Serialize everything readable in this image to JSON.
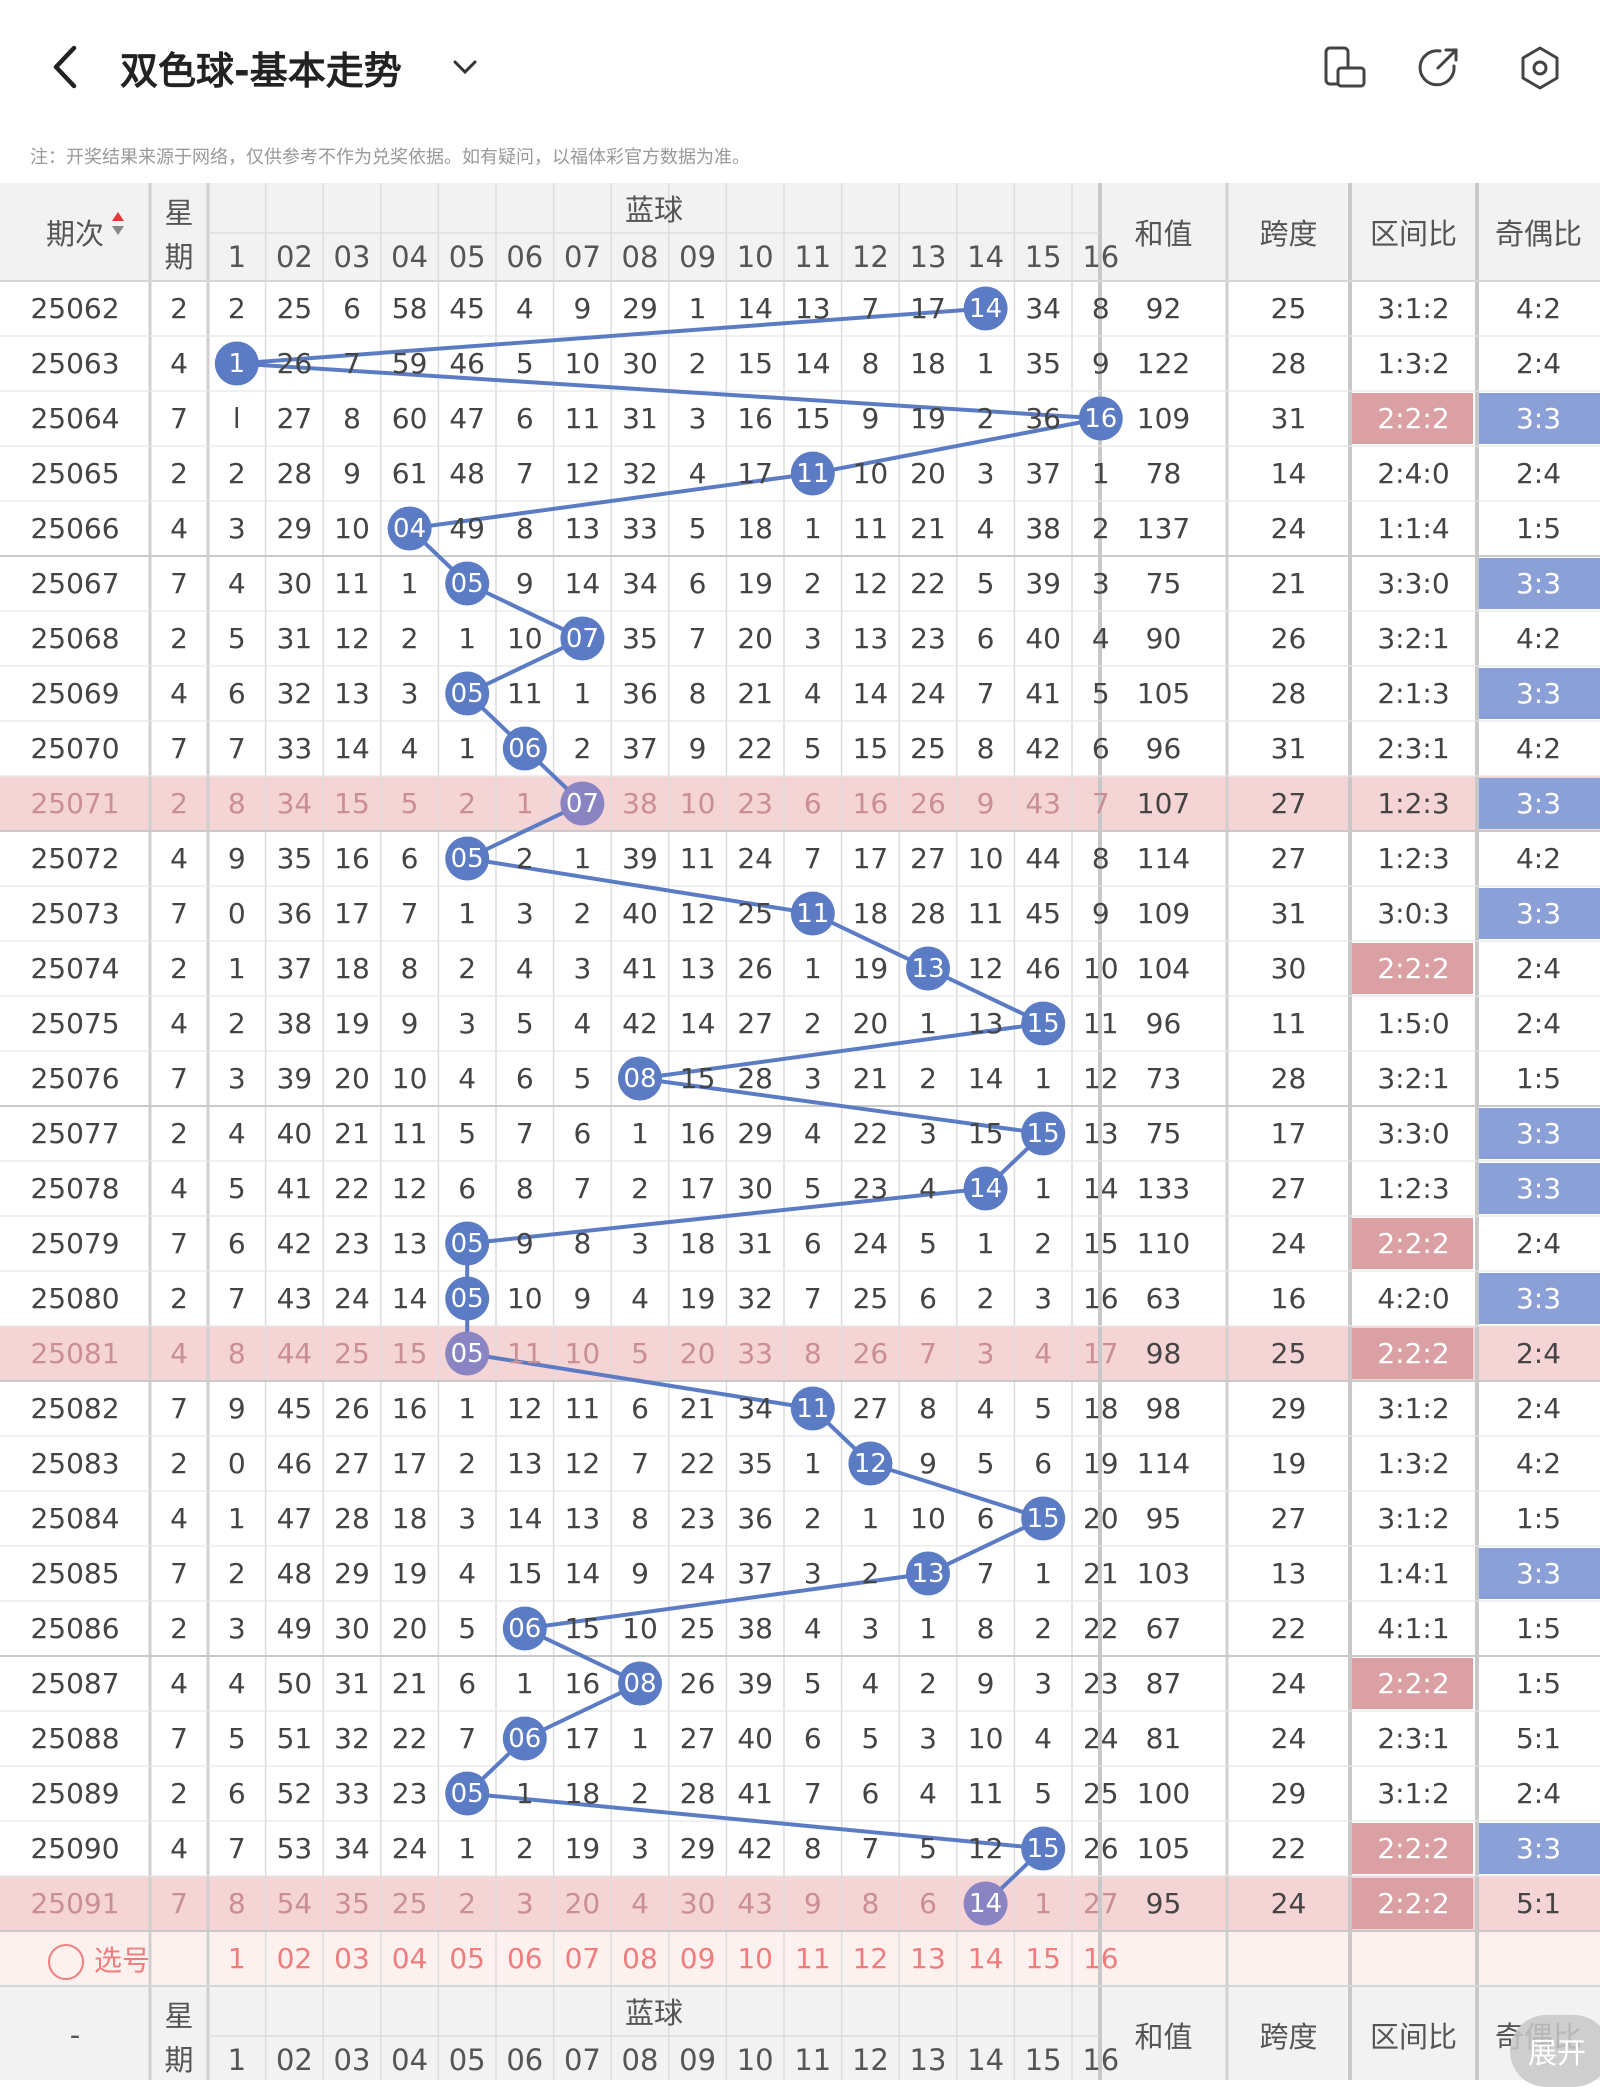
{
  "header": {
    "title": "双色球-基本走势",
    "icons": [
      "back-arrow-icon",
      "chevron-down-icon",
      "phone-landscape-icon",
      "share-icon",
      "settings-icon"
    ]
  },
  "note": "注：开奖结果来源于网络，仅供参考不作为兑奖依据。如有疑问，以福体彩官方数据为准。",
  "columns": {
    "period": "期次",
    "weekday": "星期",
    "blue_ball": "蓝球",
    "sum": "和值",
    "span": "跨度",
    "zone_ratio": "区间比",
    "odd_even_ratio": "奇偶比",
    "blue_numbers": [
      "1",
      "02",
      "03",
      "04",
      "05",
      "06",
      "07",
      "08",
      "09",
      "10",
      "11",
      "12",
      "13",
      "14",
      "15",
      "16"
    ]
  },
  "rows": [
    {
      "period": "25062",
      "wd": "2",
      "c1": "2",
      "miss": [
        "25",
        "6",
        "58",
        "45",
        "4",
        "9",
        "29",
        "1",
        "14",
        "13",
        "7",
        "17",
        "14",
        "34",
        "8"
      ],
      "ball": 14,
      "sum": "92",
      "span": "25",
      "zone": "3:1:2",
      "oe": "4:2"
    },
    {
      "period": "25063",
      "wd": "4",
      "c1": "1",
      "miss": [
        "26",
        "7",
        "59",
        "46",
        "5",
        "10",
        "30",
        "2",
        "15",
        "14",
        "8",
        "18",
        "1",
        "35",
        "9"
      ],
      "ball": 1,
      "sum": "122",
      "span": "28",
      "zone": "1:3:2",
      "oe": "2:4"
    },
    {
      "period": "25064",
      "wd": "7",
      "c1": "l",
      "miss": [
        "27",
        "8",
        "60",
        "47",
        "6",
        "11",
        "31",
        "3",
        "16",
        "15",
        "9",
        "19",
        "2",
        "36",
        "16"
      ],
      "ball": 16,
      "sum": "109",
      "span": "31",
      "zone": "2:2:2",
      "oe": "3:3"
    },
    {
      "period": "25065",
      "wd": "2",
      "c1": "2",
      "miss": [
        "28",
        "9",
        "61",
        "48",
        "7",
        "12",
        "32",
        "4",
        "17",
        "11",
        "10",
        "20",
        "3",
        "37",
        "1"
      ],
      "ball": 11,
      "sum": "78",
      "span": "14",
      "zone": "2:4:0",
      "oe": "2:4"
    },
    {
      "period": "25066",
      "wd": "4",
      "c1": "3",
      "miss": [
        "29",
        "10",
        "04",
        "49",
        "8",
        "13",
        "33",
        "5",
        "18",
        "1",
        "11",
        "21",
        "4",
        "38",
        "2"
      ],
      "ball": 4,
      "sum": "137",
      "span": "24",
      "zone": "1:1:4",
      "oe": "1:5"
    },
    {
      "period": "25067",
      "wd": "7",
      "c1": "4",
      "miss": [
        "30",
        "11",
        "1",
        "05",
        "9",
        "14",
        "34",
        "6",
        "19",
        "2",
        "12",
        "22",
        "5",
        "39",
        "3"
      ],
      "ball": 5,
      "sum": "75",
      "span": "21",
      "zone": "3:3:0",
      "oe": "3:3"
    },
    {
      "period": "25068",
      "wd": "2",
      "c1": "5",
      "miss": [
        "31",
        "12",
        "2",
        "1",
        "10",
        "07",
        "35",
        "7",
        "20",
        "3",
        "13",
        "23",
        "6",
        "40",
        "4"
      ],
      "ball": 7,
      "sum": "90",
      "span": "26",
      "zone": "3:2:1",
      "oe": "4:2"
    },
    {
      "period": "25069",
      "wd": "4",
      "c1": "6",
      "miss": [
        "32",
        "13",
        "3",
        "05",
        "11",
        "1",
        "36",
        "8",
        "21",
        "4",
        "14",
        "24",
        "7",
        "41",
        "5"
      ],
      "ball": 5,
      "sum": "105",
      "span": "28",
      "zone": "2:1:3",
      "oe": "3:3"
    },
    {
      "period": "25070",
      "wd": "7",
      "c1": "7",
      "miss": [
        "33",
        "14",
        "4",
        "1",
        "06",
        "2",
        "37",
        "9",
        "22",
        "5",
        "15",
        "25",
        "8",
        "42",
        "6"
      ],
      "ball": 6,
      "sum": "96",
      "span": "31",
      "zone": "2:3:1",
      "oe": "4:2"
    },
    {
      "period": "25071",
      "wd": "2",
      "c1": "8",
      "miss": [
        "34",
        "15",
        "5",
        "2",
        "1",
        "07",
        "38",
        "10",
        "23",
        "6",
        "16",
        "26",
        "9",
        "43",
        "7"
      ],
      "ball": 7,
      "sum": "107",
      "span": "27",
      "zone": "1:2:3",
      "oe": "3:3",
      "hl": true
    },
    {
      "period": "25072",
      "wd": "4",
      "c1": "9",
      "miss": [
        "35",
        "16",
        "6",
        "05",
        "2",
        "1",
        "39",
        "11",
        "24",
        "7",
        "17",
        "27",
        "10",
        "44",
        "8"
      ],
      "ball": 5,
      "sum": "114",
      "span": "27",
      "zone": "1:2:3",
      "oe": "4:2"
    },
    {
      "period": "25073",
      "wd": "7",
      "c1": "0",
      "miss": [
        "36",
        "17",
        "7",
        "1",
        "3",
        "2",
        "40",
        "12",
        "25",
        "11",
        "18",
        "28",
        "11",
        "45",
        "9"
      ],
      "ball": 11,
      "sum": "109",
      "span": "31",
      "zone": "3:0:3",
      "oe": "3:3"
    },
    {
      "period": "25074",
      "wd": "2",
      "c1": "1",
      "miss": [
        "37",
        "18",
        "8",
        "2",
        "4",
        "3",
        "41",
        "13",
        "26",
        "1",
        "19",
        "13",
        "12",
        "46",
        "10"
      ],
      "ball": 13,
      "sum": "104",
      "span": "30",
      "zone": "2:2:2",
      "oe": "2:4"
    },
    {
      "period": "25075",
      "wd": "4",
      "c1": "2",
      "miss": [
        "38",
        "19",
        "9",
        "3",
        "5",
        "4",
        "42",
        "14",
        "27",
        "2",
        "20",
        "1",
        "13",
        "15",
        "11"
      ],
      "ball": 15,
      "sum": "96",
      "span": "11",
      "zone": "1:5:0",
      "oe": "2:4"
    },
    {
      "period": "25076",
      "wd": "7",
      "c1": "3",
      "miss": [
        "39",
        "20",
        "10",
        "4",
        "6",
        "5",
        "08",
        "15",
        "28",
        "3",
        "21",
        "2",
        "14",
        "1",
        "12"
      ],
      "ball": 8,
      "sum": "73",
      "span": "28",
      "zone": "3:2:1",
      "oe": "1:5"
    },
    {
      "period": "25077",
      "wd": "2",
      "c1": "4",
      "miss": [
        "40",
        "21",
        "11",
        "5",
        "7",
        "6",
        "1",
        "16",
        "29",
        "4",
        "22",
        "3",
        "15",
        "15",
        "13"
      ],
      "ball": 15,
      "sum": "75",
      "span": "17",
      "zone": "3:3:0",
      "oe": "3:3"
    },
    {
      "period": "25078",
      "wd": "4",
      "c1": "5",
      "miss": [
        "41",
        "22",
        "12",
        "6",
        "8",
        "7",
        "2",
        "17",
        "30",
        "5",
        "23",
        "4",
        "14",
        "1",
        "14"
      ],
      "ball": 14,
      "sum": "133",
      "span": "27",
      "zone": "1:2:3",
      "oe": "3:3"
    },
    {
      "period": "25079",
      "wd": "7",
      "c1": "6",
      "miss": [
        "42",
        "23",
        "13",
        "05",
        "9",
        "8",
        "3",
        "18",
        "31",
        "6",
        "24",
        "5",
        "1",
        "2",
        "15"
      ],
      "ball": 5,
      "sum": "110",
      "span": "24",
      "zone": "2:2:2",
      "oe": "2:4"
    },
    {
      "period": "25080",
      "wd": "2",
      "c1": "7",
      "miss": [
        "43",
        "24",
        "14",
        "05",
        "10",
        "9",
        "4",
        "19",
        "32",
        "7",
        "25",
        "6",
        "2",
        "3",
        "16"
      ],
      "ball": 5,
      "sum": "63",
      "span": "16",
      "zone": "4:2:0",
      "oe": "3:3"
    },
    {
      "period": "25081",
      "wd": "4",
      "c1": "8",
      "miss": [
        "44",
        "25",
        "15",
        "05",
        "11",
        "10",
        "5",
        "20",
        "33",
        "8",
        "26",
        "7",
        "3",
        "4",
        "17"
      ],
      "ball": 5,
      "sum": "98",
      "span": "25",
      "zone": "2:2:2",
      "oe": "2:4",
      "hl": true
    },
    {
      "period": "25082",
      "wd": "7",
      "c1": "9",
      "miss": [
        "45",
        "26",
        "16",
        "1",
        "12",
        "11",
        "6",
        "21",
        "34",
        "11",
        "27",
        "8",
        "4",
        "5",
        "18"
      ],
      "ball": 11,
      "sum": "98",
      "span": "29",
      "zone": "3:1:2",
      "oe": "2:4"
    },
    {
      "period": "25083",
      "wd": "2",
      "c1": "0",
      "miss": [
        "46",
        "27",
        "17",
        "2",
        "13",
        "12",
        "7",
        "22",
        "35",
        "1",
        "12",
        "9",
        "5",
        "6",
        "19"
      ],
      "ball": 12,
      "sum": "114",
      "span": "19",
      "zone": "1:3:2",
      "oe": "4:2"
    },
    {
      "period": "25084",
      "wd": "4",
      "c1": "1",
      "miss": [
        "47",
        "28",
        "18",
        "3",
        "14",
        "13",
        "8",
        "23",
        "36",
        "2",
        "1",
        "10",
        "6",
        "15",
        "20"
      ],
      "ball": 15,
      "sum": "95",
      "span": "27",
      "zone": "3:1:2",
      "oe": "1:5"
    },
    {
      "period": "25085",
      "wd": "7",
      "c1": "2",
      "miss": [
        "48",
        "29",
        "19",
        "4",
        "15",
        "14",
        "9",
        "24",
        "37",
        "3",
        "2",
        "13",
        "7",
        "1",
        "21"
      ],
      "ball": 13,
      "sum": "103",
      "span": "13",
      "zone": "1:4:1",
      "oe": "3:3"
    },
    {
      "period": "25086",
      "wd": "2",
      "c1": "3",
      "miss": [
        "49",
        "30",
        "20",
        "5",
        "06",
        "15",
        "10",
        "25",
        "38",
        "4",
        "3",
        "1",
        "8",
        "2",
        "22"
      ],
      "ball": 6,
      "sum": "67",
      "span": "22",
      "zone": "4:1:1",
      "oe": "1:5"
    },
    {
      "period": "25087",
      "wd": "4",
      "c1": "4",
      "miss": [
        "50",
        "31",
        "21",
        "6",
        "1",
        "16",
        "08",
        "26",
        "39",
        "5",
        "4",
        "2",
        "9",
        "3",
        "23"
      ],
      "ball": 8,
      "sum": "87",
      "span": "24",
      "zone": "2:2:2",
      "oe": "1:5"
    },
    {
      "period": "25088",
      "wd": "7",
      "c1": "5",
      "miss": [
        "51",
        "32",
        "22",
        "7",
        "06",
        "17",
        "1",
        "27",
        "40",
        "6",
        "5",
        "3",
        "10",
        "4",
        "24"
      ],
      "ball": 6,
      "sum": "81",
      "span": "24",
      "zone": "2:3:1",
      "oe": "5:1"
    },
    {
      "period": "25089",
      "wd": "2",
      "c1": "6",
      "miss": [
        "52",
        "33",
        "23",
        "05",
        "1",
        "18",
        "2",
        "28",
        "41",
        "7",
        "6",
        "4",
        "11",
        "5",
        "25"
      ],
      "ball": 5,
      "sum": "100",
      "span": "29",
      "zone": "3:1:2",
      "oe": "2:4"
    },
    {
      "period": "25090",
      "wd": "4",
      "c1": "7",
      "miss": [
        "53",
        "34",
        "24",
        "1",
        "2",
        "19",
        "3",
        "29",
        "42",
        "8",
        "7",
        "5",
        "12",
        "15",
        "26"
      ],
      "ball": 15,
      "sum": "105",
      "span": "22",
      "zone": "2:2:2",
      "oe": "3:3"
    },
    {
      "period": "25091",
      "wd": "7",
      "c1": "8",
      "miss": [
        "54",
        "35",
        "25",
        "2",
        "3",
        "20",
        "4",
        "30",
        "43",
        "9",
        "8",
        "6",
        "14",
        "1",
        "27"
      ],
      "ball": 14,
      "sum": "95",
      "span": "24",
      "zone": "2:2:2",
      "oe": "5:1",
      "hl": true
    }
  ],
  "pick_row": {
    "label": "选号"
  },
  "footer_header": {
    "period": "-"
  },
  "expand_label": "展开",
  "colors": {
    "blue": "#5b7cc4",
    "highlight_row": "#f5d4d6",
    "zone_hl": "#dba0a4",
    "oe_hl": "#8ca0d8",
    "pick_text": "#f07d7d",
    "pick_bg": "#fdf1ef"
  }
}
